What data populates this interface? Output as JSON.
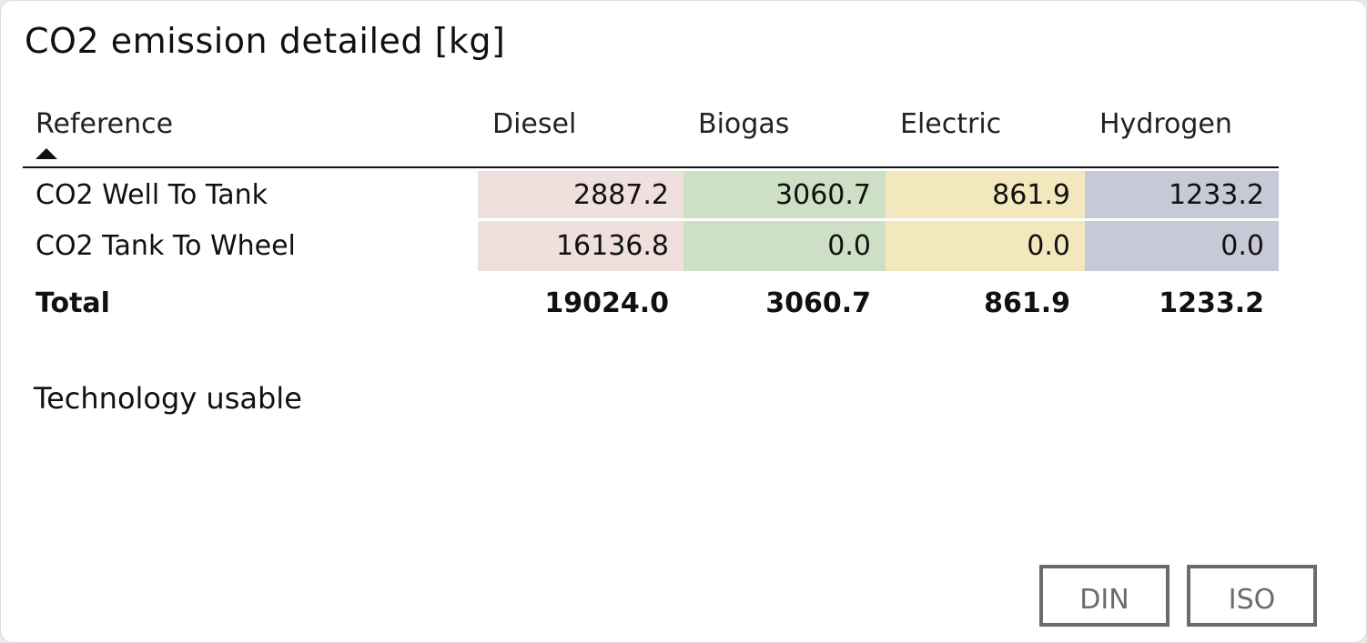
{
  "title": "CO2 emission detailed [kg]",
  "table": {
    "headers": [
      "Reference",
      "Diesel",
      "Biogas",
      "Electric",
      "Hydrogen"
    ],
    "sort": {
      "column": "Reference",
      "direction": "ascending"
    },
    "column_colors": {
      "Diesel": "#f0e0dd",
      "Biogas": "#cde0c5",
      "Electric": "#f3e8bd",
      "Hydrogen": "#c8c9d6"
    },
    "rows": [
      {
        "label": "CO2 Well To Tank",
        "values": [
          "2887.2",
          "3060.7",
          "861.9",
          "1233.2"
        ]
      },
      {
        "label": "CO2 Tank To Wheel",
        "values": [
          "16136.8",
          "0.0",
          "0.0",
          "0.0"
        ]
      }
    ],
    "total": {
      "label": "Total",
      "values": [
        "19024.0",
        "3060.7",
        "861.9",
        "1233.2"
      ]
    }
  },
  "technology_label": "Technology usable",
  "buttons": {
    "din": "DIN",
    "iso": "ISO"
  }
}
